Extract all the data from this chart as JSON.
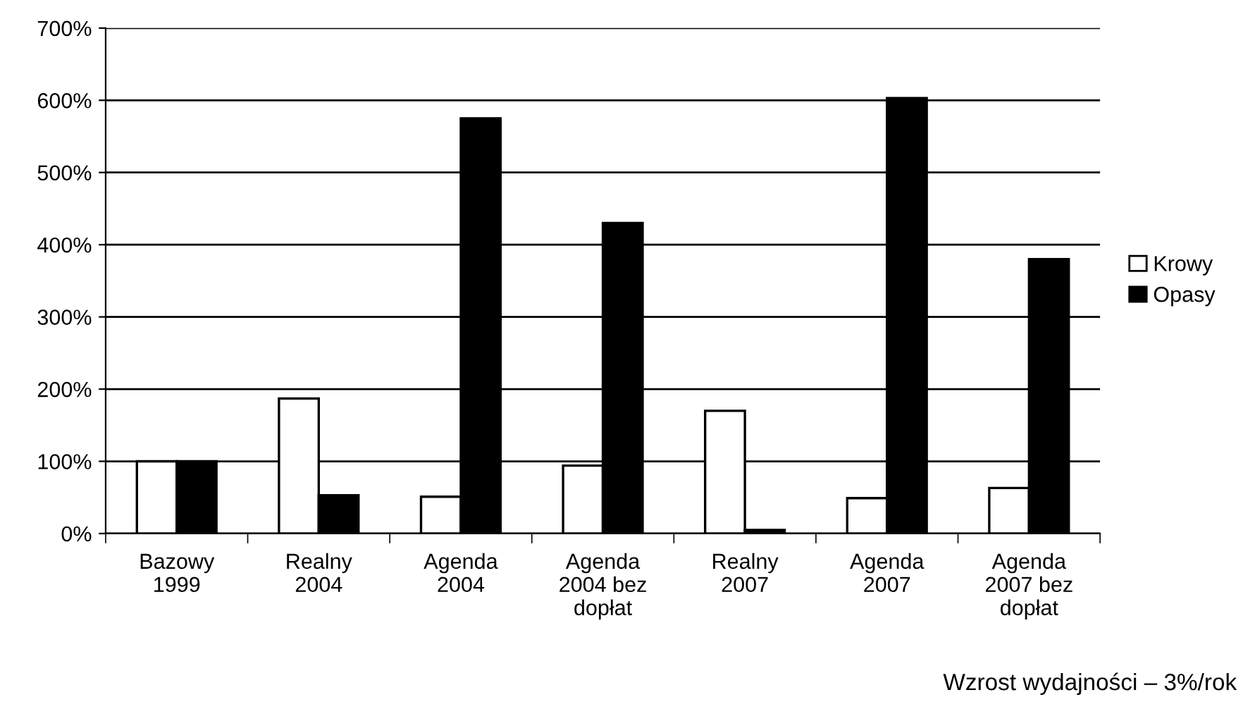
{
  "chart_data": {
    "type": "bar",
    "categories": [
      "Bazowy\n1999",
      "Realny\n2004",
      "Agenda\n2004",
      "Agenda\n2004 bez\ndopłat",
      "Realny\n2007",
      "Agenda\n2007",
      "Agenda\n2007 bez\ndopłat"
    ],
    "series": [
      {
        "name": "Krowy",
        "color": "#ffffff",
        "values": [
          100,
          187,
          51,
          94,
          170,
          49,
          63
        ]
      },
      {
        "name": "Opasy",
        "color": "#000000",
        "values": [
          100,
          53,
          575,
          430,
          5,
          603,
          380
        ]
      }
    ],
    "ylim": [
      0,
      700
    ],
    "yticks": [
      {
        "value": 0,
        "label": "0%"
      },
      {
        "value": 100,
        "label": "100%"
      },
      {
        "value": 200,
        "label": "200%"
      },
      {
        "value": 300,
        "label": "300%"
      },
      {
        "value": 400,
        "label": "400%"
      },
      {
        "value": 500,
        "label": "500%"
      },
      {
        "value": 600,
        "label": "600%"
      },
      {
        "value": 700,
        "label": "700%"
      }
    ],
    "grid": "y",
    "legend": "right",
    "annotations": [
      "Wzrost wydajności – 3%/rok"
    ]
  }
}
